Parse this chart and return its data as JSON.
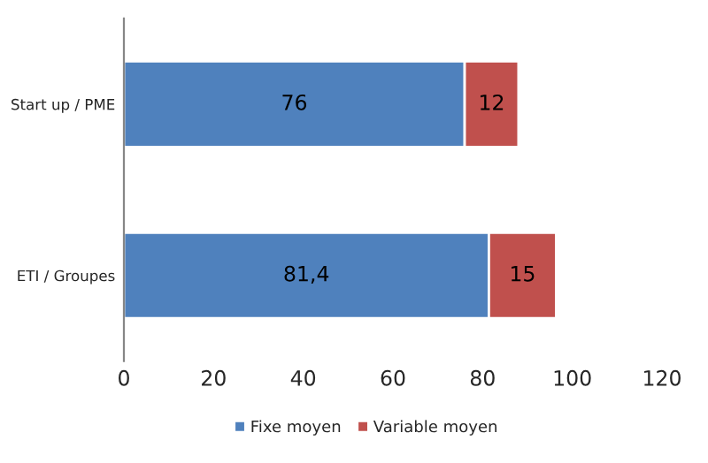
{
  "chart_data": {
    "type": "bar",
    "orientation": "horizontal",
    "stacked": true,
    "categories": [
      "Start up / PME",
      "ETI / Groupes"
    ],
    "series": [
      {
        "name": "Fixe moyen",
        "color": "#4f81bd",
        "values": [
          76,
          81.4
        ],
        "value_labels": [
          "76",
          "81,4"
        ]
      },
      {
        "name": "Variable moyen",
        "color": "#c0504d",
        "values": [
          12,
          15
        ],
        "value_labels": [
          "12",
          "15"
        ]
      }
    ],
    "xlim": [
      0,
      120
    ],
    "xticks": [
      0,
      20,
      40,
      60,
      80,
      100,
      120
    ],
    "grid": false,
    "legend": "bottom"
  }
}
